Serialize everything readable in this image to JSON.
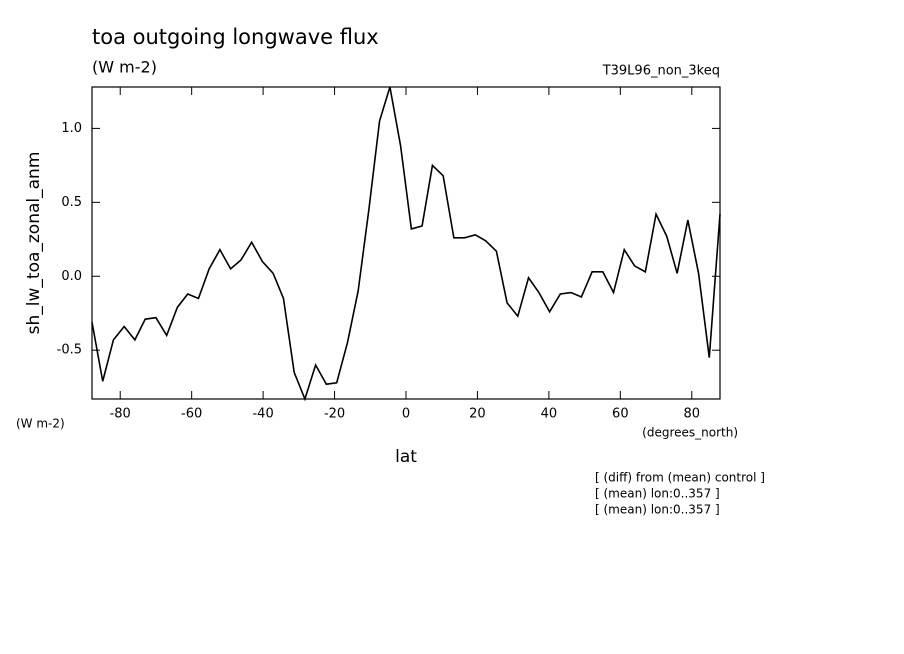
{
  "chart_data": {
    "type": "line",
    "title": "toa outgoing longwave flux",
    "units": "(W m-2)",
    "run_label": "T39L96_non_3keq",
    "y_axis_label": "sh_lw_toa_zonal_anm",
    "y_units": "(W m-2)",
    "x_units": "(degrees_north)",
    "x_axis_label": "lat",
    "notes": [
      "[ (diff) from (mean) control ]",
      "[ (mean) lon:0..357 ]",
      "[ (mean) lon:0..357 ]"
    ],
    "x": [
      -87.9,
      -84.9,
      -81.9,
      -78.9,
      -75.9,
      -73.0,
      -70.0,
      -67.0,
      -64.0,
      -61.1,
      -58.1,
      -55.1,
      -52.1,
      -49.1,
      -46.2,
      -43.2,
      -40.2,
      -37.2,
      -34.3,
      -31.3,
      -28.3,
      -25.3,
      -22.3,
      -19.4,
      -16.4,
      -13.4,
      -10.4,
      -7.4,
      -4.5,
      -1.5,
      1.5,
      4.5,
      7.4,
      10.4,
      13.4,
      16.4,
      19.4,
      22.3,
      25.3,
      28.3,
      31.3,
      34.3,
      37.2,
      40.2,
      43.2,
      46.2,
      49.1,
      52.1,
      55.1,
      58.1,
      61.1,
      64.0,
      67.0,
      70.0,
      73.0,
      75.9,
      78.9,
      81.9,
      84.9,
      87.9
    ],
    "series": [
      {
        "name": "sh_lw_toa_zonal_anm",
        "color": "#000000",
        "values": [
          -0.31,
          -0.71,
          -0.43,
          -0.34,
          -0.43,
          -0.29,
          -0.28,
          -0.4,
          -0.21,
          -0.12,
          -0.15,
          0.05,
          0.18,
          0.05,
          0.11,
          0.23,
          0.1,
          0.02,
          -0.15,
          -0.65,
          -0.83,
          -0.6,
          -0.73,
          -0.72,
          -0.45,
          -0.1,
          0.45,
          1.05,
          1.28,
          0.88,
          0.32,
          0.34,
          0.75,
          0.68,
          0.26,
          0.26,
          0.28,
          0.24,
          0.17,
          -0.18,
          -0.27,
          -0.01,
          -0.11,
          -0.24,
          -0.12,
          -0.11,
          -0.14,
          0.03,
          0.03,
          -0.11,
          0.18,
          0.07,
          0.03,
          0.42,
          0.27,
          0.02,
          0.38,
          0.02,
          -0.55,
          0.42
        ]
      }
    ],
    "xlim": [
      -87.9,
      87.9
    ],
    "ylim": [
      -0.83,
      1.28
    ],
    "xticks": [
      -80,
      -60,
      -40,
      -20,
      0,
      20,
      40,
      60,
      80
    ],
    "yticks": [
      -0.5,
      {
        "value": 0,
        "label": "0.0"
      },
      0.5,
      {
        "value": 1,
        "label": "1.0"
      }
    ]
  }
}
